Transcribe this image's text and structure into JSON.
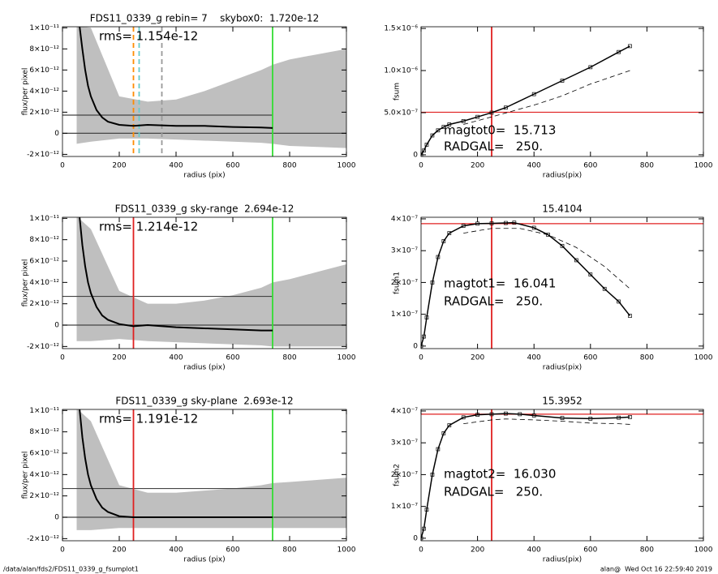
{
  "chart_data": [
    {
      "type": "line",
      "title": "FDS11_0339_g rebin= 7    skybox0:  1.720e-12",
      "xlabel": "radius (pix)",
      "ylabel": "flux/per pixel",
      "xlim": [
        0,
        1000
      ],
      "xticks": [
        0,
        200,
        400,
        600,
        800,
        1000
      ],
      "ylim": [
        -2.2e-12,
        1.01e-11
      ],
      "yticks": [
        {
          "value": -2e-12,
          "label": "-2×10⁻¹²"
        },
        0,
        {
          "value": 2e-12,
          "label": "2×10⁻¹²"
        },
        {
          "value": 4e-12,
          "label": "4×10⁻¹²"
        },
        {
          "value": 6e-12,
          "label": "6×10⁻¹²"
        },
        {
          "value": 8e-12,
          "label": "8×10⁻¹²"
        },
        {
          "value": 1e-11,
          "label": "1×10⁻¹¹"
        }
      ],
      "band": {
        "color": "#a9a9a9",
        "x": [
          50,
          100,
          200,
          300,
          400,
          500,
          600,
          700,
          740,
          800,
          900,
          1000
        ],
        "upper": [
          1.02e-11,
          1e-11,
          3.5e-12,
          3e-12,
          3.2e-12,
          4e-12,
          5e-12,
          6e-12,
          6.5e-12,
          7e-12,
          7.5e-12,
          8e-12
        ],
        "lower": [
          -1e-12,
          -8e-13,
          -5e-13,
          -5e-13,
          -6e-13,
          -7e-13,
          -8e-13,
          -9e-13,
          -1e-12,
          -1.2e-12,
          -1.3e-12,
          -1.4e-12
        ]
      },
      "series": [
        {
          "color": "#000000",
          "x": [
            60,
            70,
            80,
            90,
            100,
            120,
            140,
            160,
            200,
            250,
            300,
            400,
            500,
            600,
            700,
            740
          ],
          "values": [
            1.02e-11,
            8e-12,
            6e-12,
            4.5e-12,
            3.5e-12,
            2.2e-12,
            1.5e-12,
            1.1e-12,
            8e-13,
            7e-13,
            8e-13,
            7e-13,
            7e-13,
            6e-13,
            5.5e-13,
            5e-13
          ]
        }
      ],
      "reference_lines": [
        {
          "axis": "y",
          "value": 1.72e-12,
          "xmax": 740,
          "color": "#444444"
        },
        {
          "axis": "y",
          "value": 0,
          "color": "#444444"
        },
        {
          "axis": "x",
          "value": 250,
          "color": "#ff8c00",
          "dash": true
        },
        {
          "axis": "x",
          "value": 270,
          "color": "#66cccc",
          "dash": true
        },
        {
          "axis": "x",
          "value": 350,
          "color": "#999999",
          "dash": true
        },
        {
          "axis": "x",
          "value": 740,
          "color": "#33dd33"
        }
      ],
      "annotations": [
        "rms= 1.154e-12"
      ]
    },
    {
      "type": "line",
      "xlabel": "radius(pix)",
      "ylabel": "fsum",
      "xlim": [
        0,
        1000
      ],
      "xticks": [
        0,
        200,
        400,
        600,
        800,
        1000
      ],
      "ylim": [
        -2e-08,
        1.52e-06
      ],
      "yticks": [
        0,
        {
          "value": 5e-07,
          "label": "5.0×10⁻⁷"
        },
        {
          "value": 1e-06,
          "label": "1.0×10⁻⁶"
        },
        {
          "value": 1.5e-06,
          "label": "1.5×10⁻⁶"
        }
      ],
      "series": [
        {
          "color": "#000000",
          "marker": "square",
          "x": [
            0,
            10,
            20,
            40,
            60,
            80,
            100,
            150,
            200,
            250,
            300,
            400,
            500,
            600,
            700,
            740
          ],
          "values": [
            0,
            5e-08,
            1.2e-07,
            2.3e-07,
            2.9e-07,
            3.3e-07,
            3.6e-07,
            4e-07,
            4.5e-07,
            5e-07,
            5.6e-07,
            7.2e-07,
            8.8e-07,
            1.04e-06,
            1.22e-06,
            1.29e-06
          ]
        },
        {
          "color": "#000000",
          "dash": true,
          "x": [
            150,
            250,
            400,
            500,
            600,
            740
          ],
          "values": [
            3.6e-07,
            4.5e-07,
            5.9e-07,
            7e-07,
            8.4e-07,
            1e-06
          ]
        }
      ],
      "reference_lines": [
        {
          "axis": "y",
          "value": 5.05e-07,
          "color": "#e02020"
        },
        {
          "axis": "x",
          "value": 250,
          "color": "#e02020"
        }
      ],
      "annotations": [
        "magtot0=  15.713",
        "RADGAL=   250."
      ]
    },
    {
      "type": "line",
      "title": "FDS11_0339_g sky-range  2.694e-12",
      "xlabel": "radius (pix)",
      "ylabel": "flux/per pixel",
      "xlim": [
        0,
        1000
      ],
      "xticks": [
        0,
        200,
        400,
        600,
        800,
        1000
      ],
      "ylim": [
        -2.2e-12,
        1.01e-11
      ],
      "yticks": [
        {
          "value": -2e-12,
          "label": "-2×10⁻¹²"
        },
        0,
        {
          "value": 2e-12,
          "label": "2×10⁻¹²"
        },
        {
          "value": 4e-12,
          "label": "4×10⁻¹²"
        },
        {
          "value": 6e-12,
          "label": "6×10⁻¹²"
        },
        {
          "value": 8e-12,
          "label": "8×10⁻¹²"
        },
        {
          "value": 1e-11,
          "label": "1×10⁻¹¹"
        }
      ],
      "band": {
        "color": "#a9a9a9",
        "x": [
          50,
          100,
          200,
          300,
          400,
          500,
          600,
          700,
          740,
          800,
          900,
          1000
        ],
        "upper": [
          1.02e-11,
          9e-12,
          3.2e-12,
          2e-12,
          2e-12,
          2.3e-12,
          2.8e-12,
          3.5e-12,
          4e-12,
          4.3e-12,
          5e-12,
          5.7e-12
        ],
        "lower": [
          -1.5e-12,
          -1.5e-12,
          -1.3e-12,
          -1.5e-12,
          -1.6e-12,
          -1.7e-12,
          -1.8e-12,
          -1.9e-12,
          -2e-12,
          -2e-12,
          -2e-12,
          -2e-12
        ]
      },
      "series": [
        {
          "color": "#000000",
          "x": [
            60,
            70,
            80,
            90,
            100,
            120,
            140,
            160,
            200,
            250,
            300,
            400,
            500,
            600,
            700,
            740
          ],
          "values": [
            1.02e-11,
            7.5e-12,
            5.5e-12,
            4e-12,
            3e-12,
            1.7e-12,
            9e-13,
            5e-13,
            1e-13,
            -1e-13,
            0,
            -2e-13,
            -3e-13,
            -4e-13,
            -5e-13,
            -5e-13
          ]
        }
      ],
      "reference_lines": [
        {
          "axis": "y",
          "value": 2.694e-12,
          "xmax": 740,
          "color": "#444444"
        },
        {
          "axis": "y",
          "value": 0,
          "color": "#444444"
        },
        {
          "axis": "x",
          "value": 250,
          "color": "#e02020"
        },
        {
          "axis": "x",
          "value": 740,
          "color": "#33dd33"
        }
      ],
      "annotations": [
        "rms= 1.214e-12"
      ]
    },
    {
      "type": "line",
      "title": "15.4104",
      "xlabel": "radius(pix)",
      "ylabel": "fsum1",
      "xlim": [
        0,
        1000
      ],
      "xticks": [
        0,
        200,
        400,
        600,
        800,
        1000
      ],
      "ylim": [
        -8e-09,
        4.05e-07
      ],
      "yticks": [
        0,
        {
          "value": 1e-07,
          "label": "1×10⁻⁷"
        },
        {
          "value": 2e-07,
          "label": "2×10⁻⁷"
        },
        {
          "value": 3e-07,
          "label": "3×10⁻⁷"
        },
        {
          "value": 4e-07,
          "label": "4×10⁻⁷"
        }
      ],
      "series": [
        {
          "color": "#000000",
          "marker": "square",
          "x": [
            0,
            10,
            20,
            40,
            60,
            80,
            100,
            150,
            200,
            250,
            300,
            330,
            400,
            450,
            500,
            550,
            600,
            650,
            700,
            740
          ],
          "values": [
            0,
            3e-08,
            9e-08,
            2e-07,
            2.8e-07,
            3.3e-07,
            3.55e-07,
            3.78e-07,
            3.85e-07,
            3.86e-07,
            3.87e-07,
            3.88e-07,
            3.72e-07,
            3.5e-07,
            3.15e-07,
            2.7e-07,
            2.25e-07,
            1.8e-07,
            1.4e-07,
            9.5e-08
          ]
        },
        {
          "color": "#000000",
          "dash": true,
          "x": [
            150,
            250,
            350,
            450,
            550,
            650,
            740
          ],
          "values": [
            3.55e-07,
            3.7e-07,
            3.7e-07,
            3.5e-07,
            3.1e-07,
            2.5e-07,
            1.8e-07
          ]
        }
      ],
      "reference_lines": [
        {
          "axis": "y",
          "value": 3.85e-07,
          "color": "#e02020"
        },
        {
          "axis": "x",
          "value": 250,
          "color": "#e02020"
        }
      ],
      "annotations": [
        "magtot1=  16.041",
        "RADGAL=   250."
      ]
    },
    {
      "type": "line",
      "title": "FDS11_0339_g sky-plane  2.693e-12",
      "xlabel": "radius (pix)",
      "ylabel": "flux/per pixel",
      "xlim": [
        0,
        1000
      ],
      "xticks": [
        0,
        200,
        400,
        600,
        800,
        1000
      ],
      "ylim": [
        -2.2e-12,
        1.01e-11
      ],
      "yticks": [
        {
          "value": -2e-12,
          "label": "-2×10⁻¹²"
        },
        0,
        {
          "value": 2e-12,
          "label": "2×10⁻¹²"
        },
        {
          "value": 4e-12,
          "label": "4×10⁻¹²"
        },
        {
          "value": 6e-12,
          "label": "6×10⁻¹²"
        },
        {
          "value": 8e-12,
          "label": "8×10⁻¹²"
        },
        {
          "value": 1e-11,
          "label": "1×10⁻¹¹"
        }
      ],
      "band": {
        "color": "#a9a9a9",
        "x": [
          50,
          100,
          200,
          300,
          400,
          500,
          600,
          700,
          740,
          800,
          900,
          1000
        ],
        "upper": [
          1.02e-11,
          9e-12,
          3e-12,
          2.3e-12,
          2.3e-12,
          2.5e-12,
          2.7e-12,
          3e-12,
          3.2e-12,
          3.3e-12,
          3.5e-12,
          3.7e-12
        ],
        "lower": [
          -1.2e-12,
          -1.2e-12,
          -1e-12,
          -1e-12,
          -1e-12,
          -1e-12,
          -1e-12,
          -1e-12,
          -1e-12,
          -1e-12,
          -1e-12,
          -1e-12
        ]
      },
      "series": [
        {
          "color": "#000000",
          "x": [
            60,
            70,
            80,
            90,
            100,
            120,
            140,
            160,
            200,
            250,
            300,
            400,
            500,
            600,
            700,
            740
          ],
          "values": [
            1.02e-11,
            7.5e-12,
            5.5e-12,
            4e-12,
            3e-12,
            1.7e-12,
            9e-13,
            5e-13,
            1e-13,
            0,
            0,
            0,
            0,
            0,
            0,
            0
          ]
        }
      ],
      "reference_lines": [
        {
          "axis": "y",
          "value": 2.693e-12,
          "xmax": 740,
          "color": "#444444"
        },
        {
          "axis": "y",
          "value": 0,
          "color": "#444444"
        },
        {
          "axis": "x",
          "value": 250,
          "color": "#e02020"
        },
        {
          "axis": "x",
          "value": 740,
          "color": "#33dd33"
        }
      ],
      "annotations": [
        "rms= 1.191e-12"
      ]
    },
    {
      "type": "line",
      "title": "15.3952",
      "xlabel": "radius(pix)",
      "ylabel": "fsum2",
      "xlim": [
        0,
        1000
      ],
      "xticks": [
        0,
        200,
        400,
        600,
        800,
        1000
      ],
      "ylim": [
        -8e-09,
        4.05e-07
      ],
      "yticks": [
        0,
        {
          "value": 1e-07,
          "label": "1×10⁻⁷"
        },
        {
          "value": 2e-07,
          "label": "2×10⁻⁷"
        },
        {
          "value": 3e-07,
          "label": "3×10⁻⁷"
        },
        {
          "value": 4e-07,
          "label": "4×10⁻⁷"
        }
      ],
      "series": [
        {
          "color": "#000000",
          "marker": "square",
          "x": [
            0,
            10,
            20,
            40,
            60,
            80,
            100,
            150,
            200,
            250,
            300,
            350,
            400,
            500,
            600,
            700,
            740
          ],
          "values": [
            0,
            3e-08,
            9e-08,
            2e-07,
            2.8e-07,
            3.3e-07,
            3.55e-07,
            3.8e-07,
            3.88e-07,
            3.9e-07,
            3.92e-07,
            3.9e-07,
            3.86e-07,
            3.78e-07,
            3.76e-07,
            3.79e-07,
            3.81e-07
          ]
        },
        {
          "color": "#000000",
          "dash": true,
          "x": [
            150,
            250,
            300,
            400,
            500,
            600,
            700,
            740
          ],
          "values": [
            3.6e-07,
            3.72e-07,
            3.75e-07,
            3.72e-07,
            3.68e-07,
            3.62e-07,
            3.6e-07,
            3.58e-07
          ]
        }
      ],
      "reference_lines": [
        {
          "axis": "y",
          "value": 3.9e-07,
          "color": "#e02020"
        },
        {
          "axis": "x",
          "value": 250,
          "color": "#e02020"
        }
      ],
      "annotations": [
        "magtot2=  16.030",
        "RADGAL=   250."
      ]
    }
  ],
  "footer": {
    "left": "/data/alan/fds2/FDS11_0339_g_fsumplot1",
    "right": "alan@  Wed Oct 16 22:59:40 2019"
  }
}
